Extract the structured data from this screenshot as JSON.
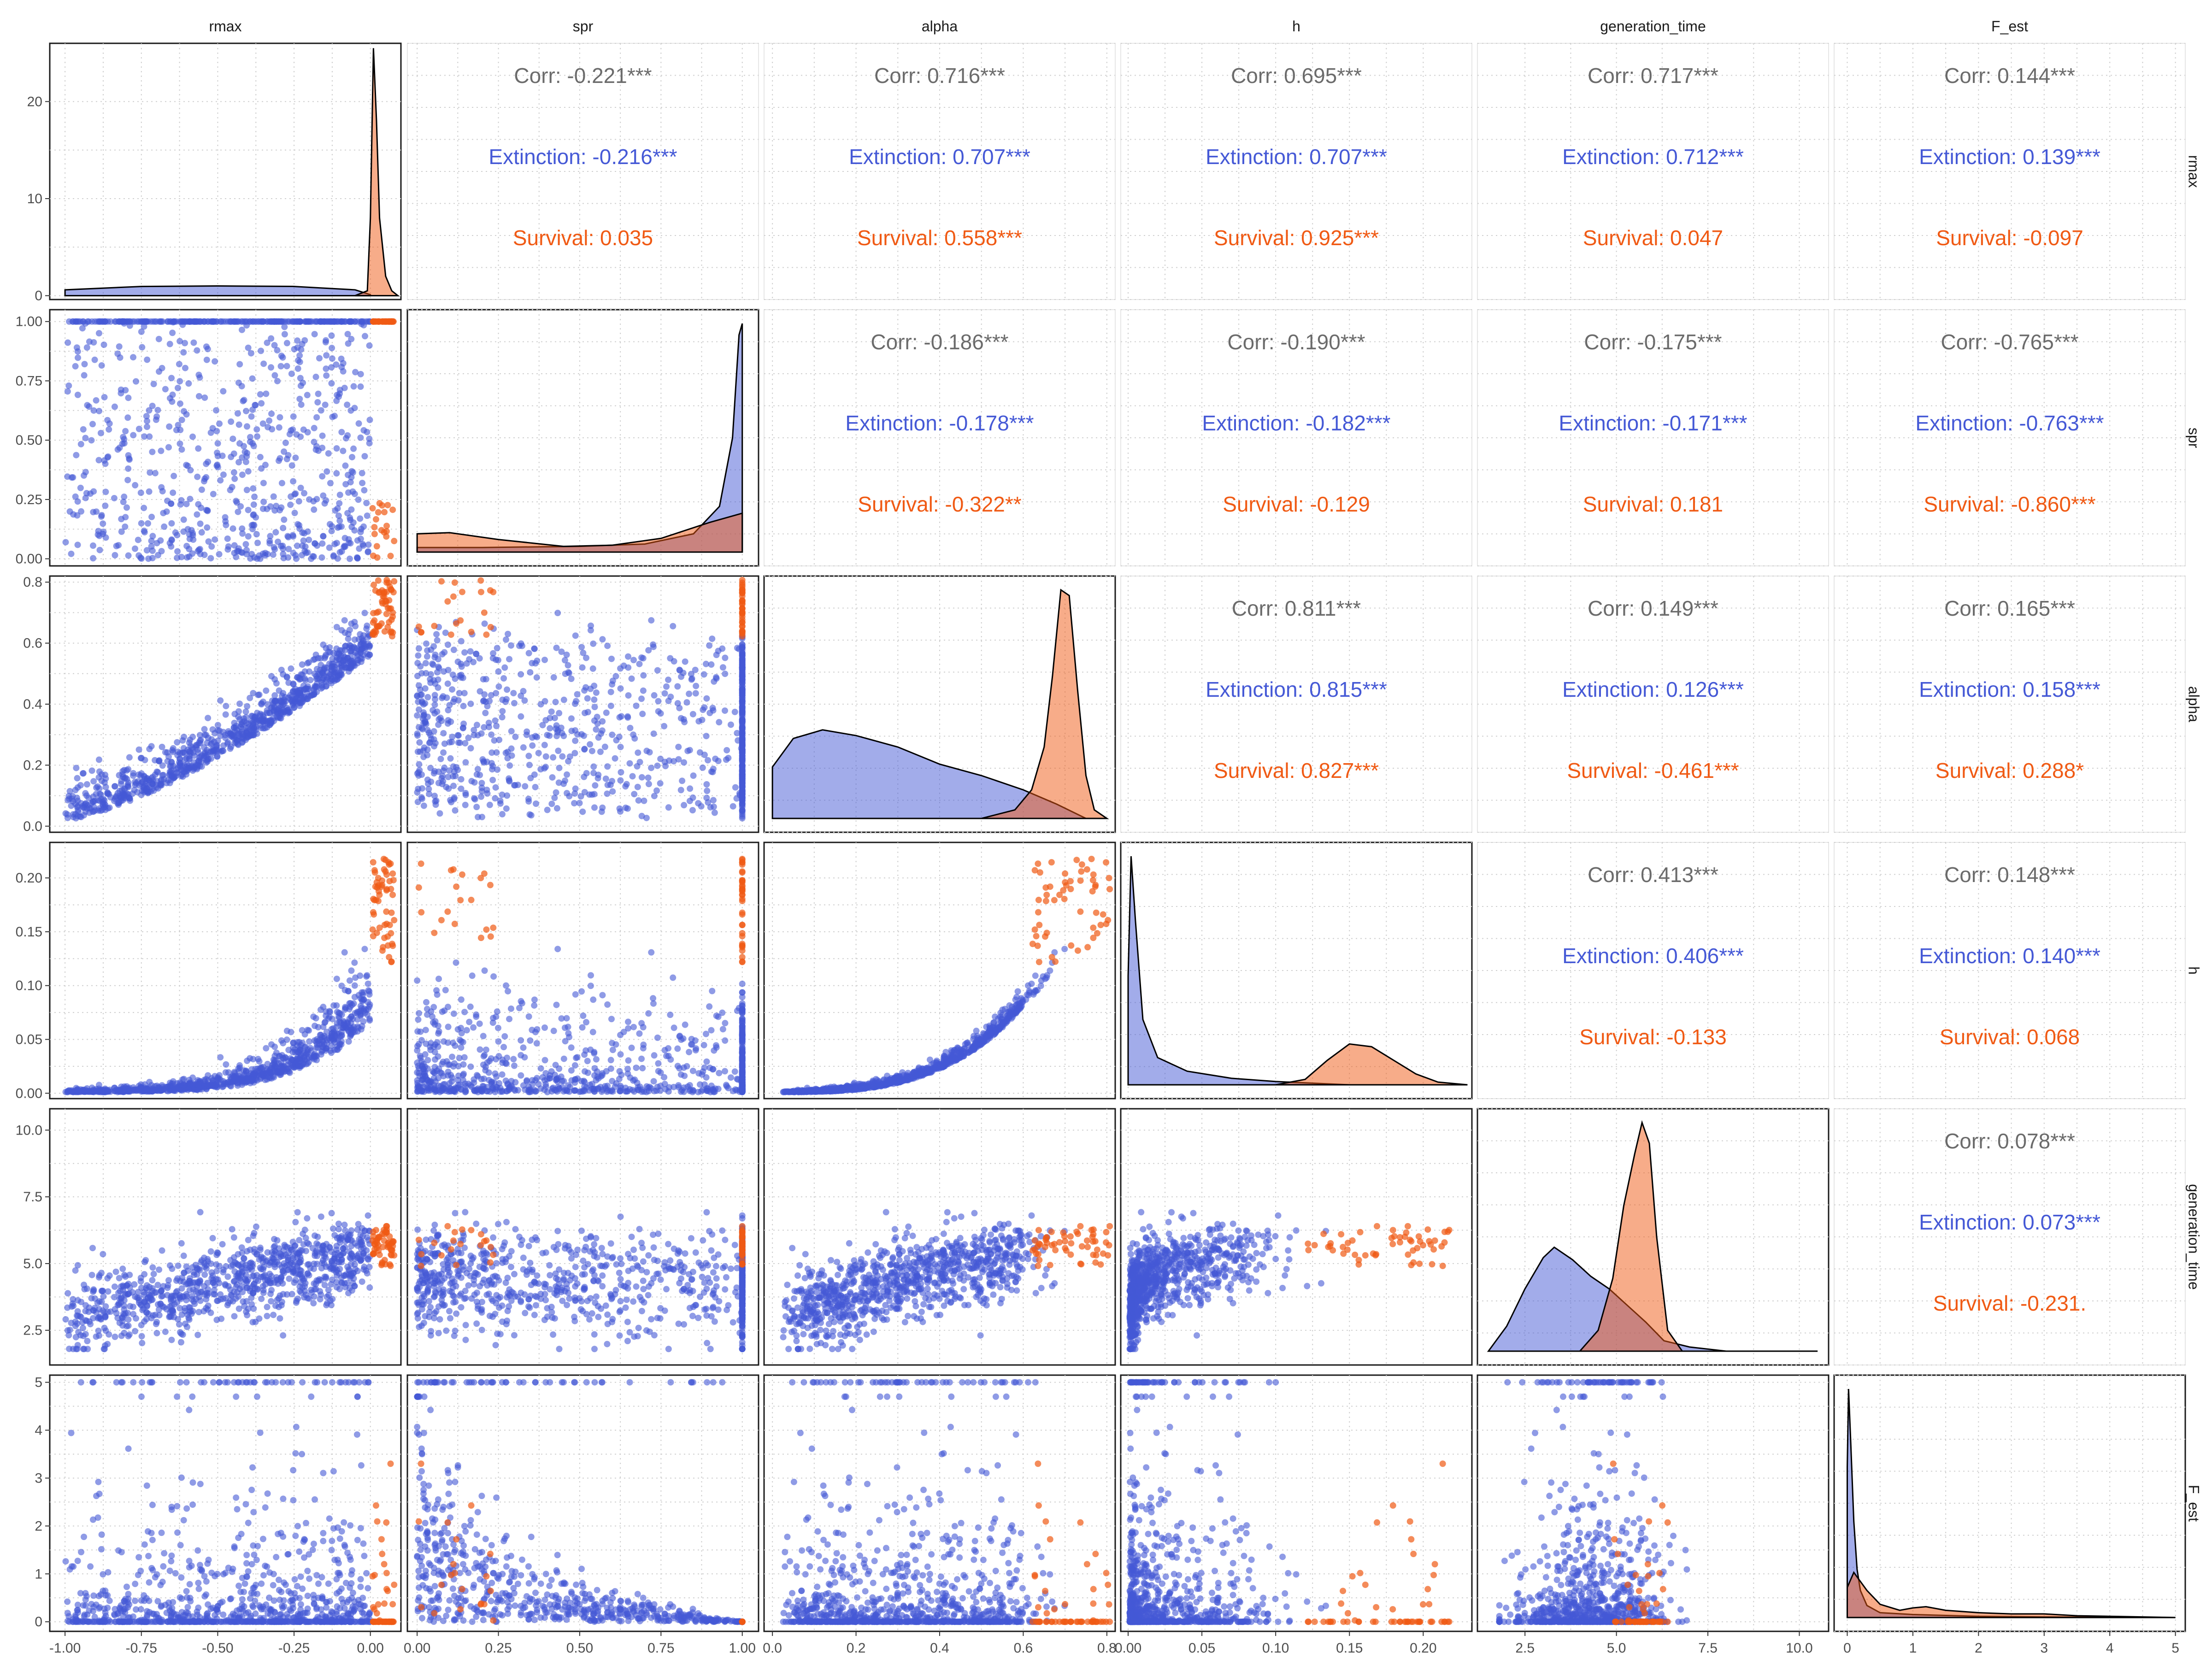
{
  "colors": {
    "extinction": "#4559d6",
    "survival": "#f05a14",
    "overall": "#6b6b6b",
    "grid": "#cfcfcf",
    "panel_border": "#1a1a1a",
    "upper_border": "#e6e6e6"
  },
  "chart_data": {
    "type": "scatter",
    "chart_kind": "pairs-plot",
    "variables": [
      "rmax",
      "spr",
      "alpha",
      "h",
      "generation_time",
      "F_est"
    ],
    "groups": [
      "Extinction",
      "Survival"
    ],
    "ranges": {
      "rmax": [
        -1.05,
        0.1
      ],
      "spr": [
        -0.03,
        1.05
      ],
      "alpha": [
        -0.02,
        0.82
      ],
      "h": [
        -0.005,
        0.233
      ],
      "generation_time": [
        1.2,
        10.8
      ],
      "F_est": [
        -0.2,
        5.15
      ]
    },
    "ticks": {
      "rmax": {
        "values": [
          -1.0,
          -0.75,
          -0.5,
          -0.25,
          0.0
        ],
        "labels": [
          "-1.00",
          "-0.75",
          "-0.50",
          "-0.25",
          "0.00"
        ]
      },
      "spr": {
        "values": [
          0,
          0.25,
          0.5,
          0.75,
          1.0
        ],
        "labels": [
          "0.00",
          "0.25",
          "0.50",
          "0.75",
          "1.00"
        ]
      },
      "alpha": {
        "values": [
          0,
          0.2,
          0.4,
          0.6,
          0.8
        ],
        "labels": [
          "0.0",
          "0.2",
          "0.4",
          "0.6",
          "0.8"
        ]
      },
      "h": {
        "values": [
          0,
          0.05,
          0.1,
          0.15,
          0.2
        ],
        "labels": [
          "0.00",
          "0.05",
          "0.10",
          "0.15",
          "0.20"
        ]
      },
      "generation_time": {
        "values": [
          2.5,
          5.0,
          7.5,
          10.0
        ],
        "labels": [
          "2.5",
          "5.0",
          "7.5",
          "10.0"
        ]
      },
      "F_est": {
        "values": [
          0,
          1,
          2,
          3,
          4,
          5
        ],
        "labels": [
          "0",
          "1",
          "2",
          "3",
          "4",
          "5"
        ]
      }
    },
    "density_axis": {
      "values": [
        0,
        10,
        20
      ],
      "labels": [
        "0",
        "10",
        "20"
      ],
      "range": [
        -0.4,
        26
      ]
    },
    "densities": [
      {
        "variable": "rmax",
        "extinction": {
          "x": [
            -1.0,
            -0.75,
            -0.5,
            -0.25,
            -0.05,
            0.0
          ],
          "y": [
            0.6,
            0.95,
            1.0,
            0.95,
            0.6,
            0.1
          ]
        },
        "survival": {
          "x": [
            -0.05,
            -0.01,
            0.0,
            0.01,
            0.02,
            0.03,
            0.05,
            0.07,
            0.09
          ],
          "y": [
            0.0,
            0.5,
            8.0,
            25.5,
            18.0,
            8.0,
            2.0,
            0.5,
            0.0
          ]
        }
      },
      {
        "variable": "spr",
        "extinction": {
          "x": [
            0.0,
            0.2,
            0.5,
            0.7,
            0.85,
            0.93,
            0.97,
            0.99,
            1.0
          ],
          "y": [
            0.2,
            0.2,
            0.25,
            0.35,
            0.8,
            2.0,
            5.0,
            9.5,
            10.0
          ]
        },
        "survival": {
          "x": [
            0.0,
            0.1,
            0.25,
            0.45,
            0.6,
            0.75,
            0.9,
            1.0
          ],
          "y": [
            0.8,
            0.85,
            0.55,
            0.25,
            0.3,
            0.6,
            1.3,
            1.7
          ]
        }
      },
      {
        "variable": "alpha",
        "extinction": {
          "x": [
            0.0,
            0.05,
            0.12,
            0.2,
            0.3,
            0.4,
            0.5,
            0.6,
            0.68,
            0.75
          ],
          "y": [
            1.8,
            2.8,
            3.1,
            2.9,
            2.5,
            1.9,
            1.5,
            1.0,
            0.5,
            0.0
          ]
        },
        "survival": {
          "x": [
            0.5,
            0.58,
            0.62,
            0.65,
            0.67,
            0.69,
            0.71,
            0.73,
            0.75,
            0.77,
            0.8
          ],
          "y": [
            0.0,
            0.3,
            1.0,
            2.5,
            5.0,
            8.0,
            7.8,
            4.5,
            1.5,
            0.3,
            0.0
          ]
        }
      },
      {
        "variable": "h",
        "extinction": {
          "x": [
            0.0,
            0.002,
            0.005,
            0.01,
            0.02,
            0.04,
            0.07,
            0.1,
            0.15
          ],
          "y": [
            20.0,
            42.0,
            30.0,
            12.0,
            5.0,
            2.5,
            1.2,
            0.6,
            0.0
          ]
        },
        "survival": {
          "x": [
            0.1,
            0.12,
            0.135,
            0.15,
            0.165,
            0.18,
            0.195,
            0.21,
            0.23
          ],
          "y": [
            0.0,
            1.0,
            4.5,
            7.5,
            7.0,
            4.5,
            2.0,
            0.5,
            0.0
          ]
        }
      },
      {
        "variable": "generation_time",
        "extinction": {
          "x": [
            1.5,
            2.0,
            2.5,
            3.0,
            3.3,
            3.8,
            4.3,
            4.8,
            5.3,
            5.8,
            6.3,
            7.0,
            8.0,
            10.5
          ],
          "y": [
            0.0,
            0.12,
            0.3,
            0.45,
            0.5,
            0.44,
            0.36,
            0.3,
            0.22,
            0.14,
            0.05,
            0.02,
            0.0,
            0.0
          ]
        },
        "survival": {
          "x": [
            4.0,
            4.5,
            4.9,
            5.2,
            5.5,
            5.7,
            5.9,
            6.1,
            6.4,
            6.8
          ],
          "y": [
            0.0,
            0.1,
            0.35,
            0.7,
            0.95,
            1.1,
            1.0,
            0.55,
            0.1,
            0.0
          ]
        }
      },
      {
        "variable": "F_est",
        "extinction": {
          "x": [
            0.0,
            0.02,
            0.05,
            0.1,
            0.15,
            0.2,
            0.3,
            0.5,
            1.0,
            2.0,
            3.0,
            5.0
          ],
          "y": [
            2.5,
            3.8,
            3.0,
            1.6,
            0.8,
            0.45,
            0.2,
            0.08,
            0.05,
            0.02,
            0.01,
            0.0
          ]
        },
        "survival": {
          "x": [
            0.0,
            0.1,
            0.3,
            0.5,
            0.8,
            1.0,
            1.2,
            1.5,
            2.0,
            2.5,
            3.0,
            3.5,
            5.0
          ],
          "y": [
            0.5,
            0.75,
            0.45,
            0.22,
            0.12,
            0.16,
            0.18,
            0.12,
            0.08,
            0.06,
            0.06,
            0.03,
            0.0
          ]
        }
      }
    ],
    "correlations": [
      {
        "row": "rmax",
        "col": "spr",
        "overall": "Corr: -0.221***",
        "extinction": "Extinction: -0.216***",
        "survival": "Survival: 0.035"
      },
      {
        "row": "rmax",
        "col": "alpha",
        "overall": "Corr: 0.716***",
        "extinction": "Extinction: 0.707***",
        "survival": "Survival: 0.558***"
      },
      {
        "row": "rmax",
        "col": "h",
        "overall": "Corr: 0.695***",
        "extinction": "Extinction: 0.707***",
        "survival": "Survival: 0.925***"
      },
      {
        "row": "rmax",
        "col": "generation_time",
        "overall": "Corr: 0.717***",
        "extinction": "Extinction: 0.712***",
        "survival": "Survival: 0.047"
      },
      {
        "row": "rmax",
        "col": "F_est",
        "overall": "Corr: 0.144***",
        "extinction": "Extinction: 0.139***",
        "survival": "Survival: -0.097"
      },
      {
        "row": "spr",
        "col": "alpha",
        "overall": "Corr: -0.186***",
        "extinction": "Extinction: -0.178***",
        "survival": "Survival: -0.322**"
      },
      {
        "row": "spr",
        "col": "h",
        "overall": "Corr: -0.190***",
        "extinction": "Extinction: -0.182***",
        "survival": "Survival: -0.129"
      },
      {
        "row": "spr",
        "col": "generation_time",
        "overall": "Corr: -0.175***",
        "extinction": "Extinction: -0.171***",
        "survival": "Survival: 0.181"
      },
      {
        "row": "spr",
        "col": "F_est",
        "overall": "Corr: -0.765***",
        "extinction": "Extinction: -0.763***",
        "survival": "Survival: -0.860***"
      },
      {
        "row": "alpha",
        "col": "h",
        "overall": "Corr: 0.811***",
        "extinction": "Extinction: 0.815***",
        "survival": "Survival: 0.827***"
      },
      {
        "row": "alpha",
        "col": "generation_time",
        "overall": "Corr: 0.149***",
        "extinction": "Extinction: 0.126***",
        "survival": "Survival: -0.461***"
      },
      {
        "row": "alpha",
        "col": "F_est",
        "overall": "Corr: 0.165***",
        "extinction": "Extinction: 0.158***",
        "survival": "Survival: 0.288*"
      },
      {
        "row": "h",
        "col": "generation_time",
        "overall": "Corr: 0.413***",
        "extinction": "Extinction: 0.406***",
        "survival": "Survival: -0.133"
      },
      {
        "row": "h",
        "col": "F_est",
        "overall": "Corr: 0.148***",
        "extinction": "Extinction: 0.140***",
        "survival": "Survival: 0.068"
      },
      {
        "row": "generation_time",
        "col": "F_est",
        "overall": "Corr: 0.078***",
        "extinction": "Extinction: 0.073***",
        "survival": "Survival: -0.231."
      }
    ],
    "scatter_note": "lower-triangle panels: pairwise scatter of each variable pair, Extinction (blue) and Survival (orange) points",
    "grid": true
  }
}
